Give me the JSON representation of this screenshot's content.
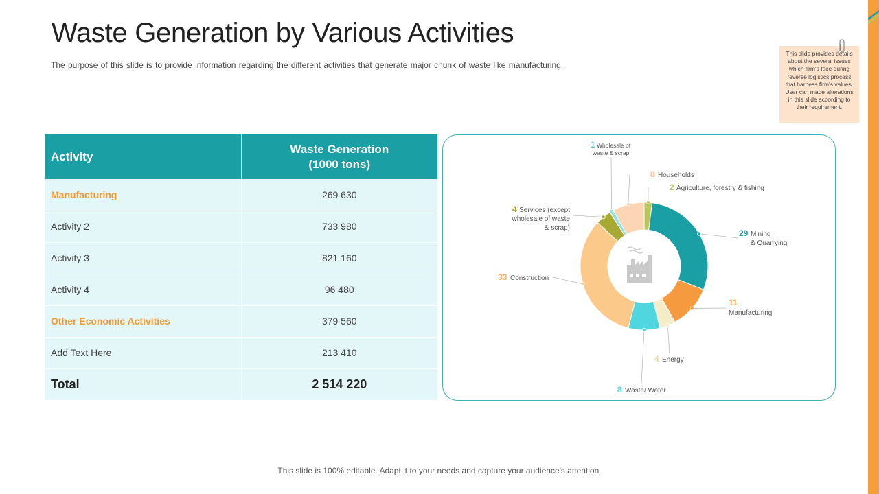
{
  "slide": {
    "title": "Waste Generation by Various Activities",
    "subtitle": "The purpose of this slide is to provide information regarding the different activities that generate major chunk of waste like manufacturing.",
    "note": "This slide provides details about the several issues which firm's face during reverse logistics process that harness firm's values. User can made alterations in this slide according to their requirement.",
    "footer": "This slide is 100% editable. Adapt it to your needs and capture your audience's attention."
  },
  "table": {
    "header_activity": "Activity",
    "header_waste_line1": "Waste Generation",
    "header_waste_line2": "(1000 tons)",
    "rows": [
      {
        "activity": "Manufacturing",
        "value": "269 630"
      },
      {
        "activity": "Activity 2",
        "value": "733 980"
      },
      {
        "activity": "Activity 3",
        "value": "821 160"
      },
      {
        "activity": "Activity 4",
        "value": "96 480"
      },
      {
        "activity": "Other Economic Activities",
        "value": "379 560"
      },
      {
        "activity": "Add Text Here",
        "value": "213 410"
      }
    ],
    "total_label": "Total",
    "total_value": "2 514 220"
  },
  "chart_data": {
    "type": "pie",
    "subtype": "donut",
    "center_icon": "factory-icon",
    "slices": [
      {
        "label": "Agriculture, forestry & fishing",
        "value": 2,
        "color": "#b5c95a"
      },
      {
        "label": "Mining & Quarrying",
        "value": 29,
        "color": "#1aa0a4"
      },
      {
        "label": "Manufacturing",
        "value": 11,
        "color": "#f59a3e"
      },
      {
        "label": "Energy",
        "value": 4,
        "color": "#f5ecc8"
      },
      {
        "label": "Waste/ Water",
        "value": 8,
        "color": "#4fd6de"
      },
      {
        "label": "Construction",
        "value": 33,
        "color": "#fbc98a"
      },
      {
        "label": "Services (except wholesale of waste & scrap)",
        "value": 4,
        "color": "#a8a932"
      },
      {
        "label": "Wholesale of waste & scrap",
        "value": 1,
        "color": "#8fe3e8"
      },
      {
        "label": "Households",
        "value": 8,
        "color": "#fcd6b4"
      }
    ]
  }
}
